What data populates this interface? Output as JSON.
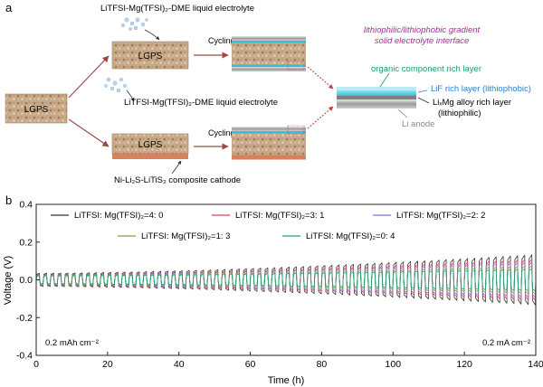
{
  "panel_a": {
    "label": "a",
    "top_electrolyte": "LiTFSI-Mg(TFSI)₂-DME liquid electrolyte",
    "middle_electrolyte": "LiTFSI-Mg(TFSI)₂-DME liquid electrolyte",
    "lgps_left": "LGPS",
    "lgps_top": "LGPS",
    "lgps_bottom": "LGPS",
    "cycling_top": "Cycling",
    "cycling_bottom": "Cycling",
    "cathode_label": "Ni-Li₂S-LiTiS₂ composite cathode",
    "sei_title_line1": "lithiophilic/lithiophobic gradient",
    "sei_title_line2": "solid electrolyte interface",
    "layer_organic": "organic component rich layer",
    "layer_lif": "LiF rich layer (lithiophobic)",
    "layer_limg_line1": "LiₓMg alloy rich layer",
    "layer_limg_line2": "(lithiophilic)",
    "layer_li_anode": "Li anode",
    "colors": {
      "sei_title": "#b0289a",
      "organic": "#1aa068",
      "lif": "#2a7fd0",
      "anode_label": "#888888"
    }
  },
  "panel_b": {
    "label": "b"
  },
  "chart_data": {
    "type": "line",
    "xlabel": "Time (h)",
    "ylabel": "Voltage (V)",
    "xlim": [
      0,
      140
    ],
    "ylim": [
      -0.4,
      0.4
    ],
    "xticks": [
      "0",
      "20",
      "40",
      "60",
      "80",
      "100",
      "120",
      "140"
    ],
    "yticks": [
      "0.4",
      "0.2",
      "0.0",
      "-0.2",
      "-0.4"
    ],
    "period_h": 2,
    "annotation_left": "0.2 mAh cm⁻²",
    "annotation_right": "0.2 mA cm⁻²",
    "legend_placement": "top",
    "series": [
      {
        "name": "LiTFSI: Mg(TFSI)₂=4: 0",
        "color": "#333333",
        "amp_start": 0.035,
        "amp_end": 0.135
      },
      {
        "name": "LiTFSI: Mg(TFSI)₂=3: 1",
        "color": "#e23a5a",
        "amp_start": 0.03,
        "amp_end": 0.11
      },
      {
        "name": "LiTFSI: Mg(TFSI)₂=2: 2",
        "color": "#7b72d8",
        "amp_start": 0.028,
        "amp_end": 0.095
      },
      {
        "name": "LiTFSI: Mg(TFSI)₂=1: 3",
        "color": "#7aa43a",
        "amp_start": 0.025,
        "amp_end": 0.075
      },
      {
        "name": "LiTFSI: Mg(TFSI)₂=0: 4",
        "color": "#18a37a",
        "amp_start": 0.022,
        "amp_end": 0.06
      }
    ]
  }
}
